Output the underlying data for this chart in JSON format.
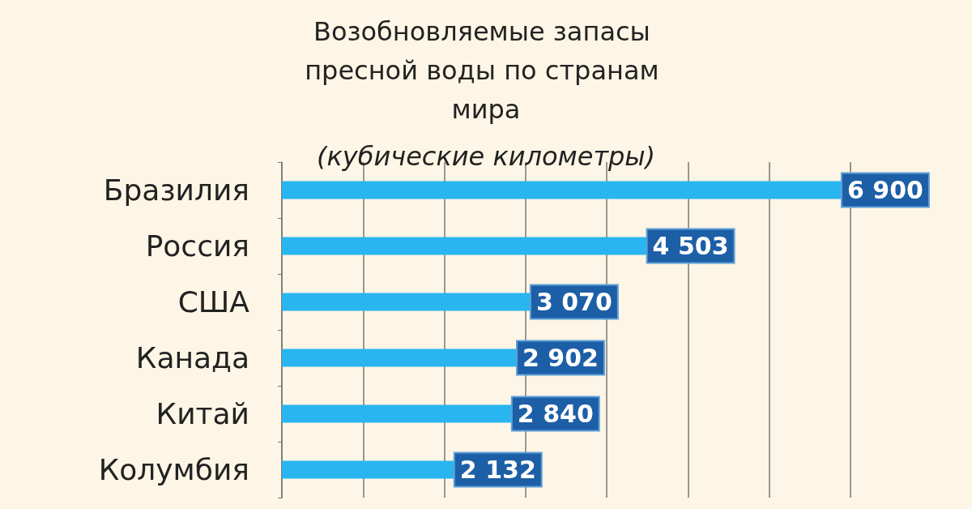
{
  "chart_data": {
    "type": "bar",
    "orientation": "horizontal",
    "title": "Возобновляемые запасы пресной воды по странам мира",
    "subtitle": "(кубические километры)",
    "categories": [
      "Бразилия",
      "Россия",
      "США",
      "Канада",
      "Китай",
      "Колумбия"
    ],
    "values": [
      6900,
      4503,
      3070,
      2902,
      2840,
      2132
    ],
    "value_labels": [
      "6 900",
      "4 503",
      "3 070",
      "2 902",
      "2 840",
      "2 132"
    ],
    "color": "#29b5ef",
    "grid": "x",
    "tick_labels": "y"
  }
}
